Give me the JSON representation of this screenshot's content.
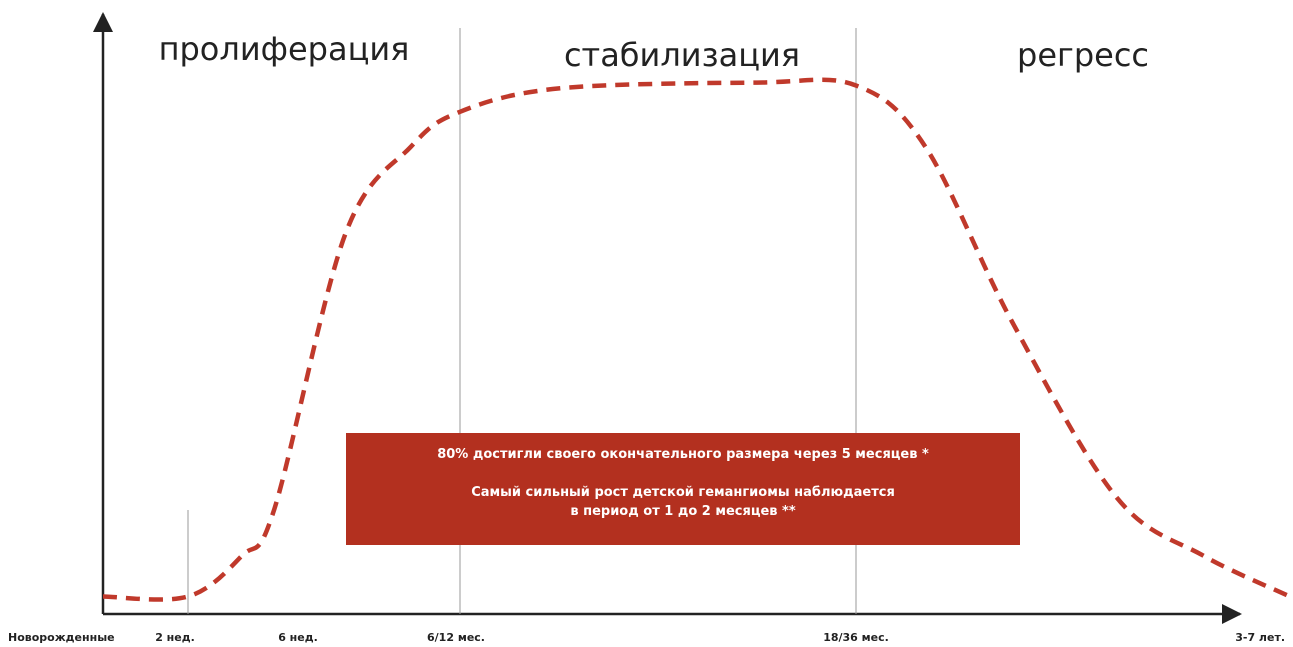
{
  "chart_data": {
    "type": "line",
    "phases": [
      {
        "label": "пролиферация"
      },
      {
        "label": "стабилизация"
      },
      {
        "label": "регресс"
      }
    ],
    "x_ticks": [
      "Новорожденные",
      "2 нед.",
      "6 нед.",
      "6/12 мес.",
      "18/36 мес.",
      "3-7 лет."
    ],
    "series": [
      {
        "style": "dashed",
        "color": "#c0392b",
        "points": [
          {
            "x": 0.0,
            "y": 3
          },
          {
            "x": 1.0,
            "y": 3
          },
          {
            "x": 1.5,
            "y": 10
          },
          {
            "x": 1.8,
            "y": 18
          },
          {
            "x": 2.3,
            "y": 65
          },
          {
            "x": 2.7,
            "y": 80
          },
          {
            "x": 3.0,
            "y": 86
          },
          {
            "x": 3.5,
            "y": 90
          },
          {
            "x": 4.5,
            "y": 91
          },
          {
            "x": 5.0,
            "y": 90.5
          },
          {
            "x": 5.4,
            "y": 80
          },
          {
            "x": 5.9,
            "y": 50
          },
          {
            "x": 6.5,
            "y": 20
          },
          {
            "x": 7.0,
            "y": 10
          },
          {
            "x": 7.5,
            "y": 3
          }
        ]
      }
    ],
    "grid": false,
    "annotation": {
      "line1": "80% достигли своего окончательного размера через 5 месяцев *",
      "line2": "Самый сильный рост детской гемангиомы наблюдается",
      "line3": "в период от 1 до 2 месяцев **",
      "background": "#b3301f"
    }
  }
}
